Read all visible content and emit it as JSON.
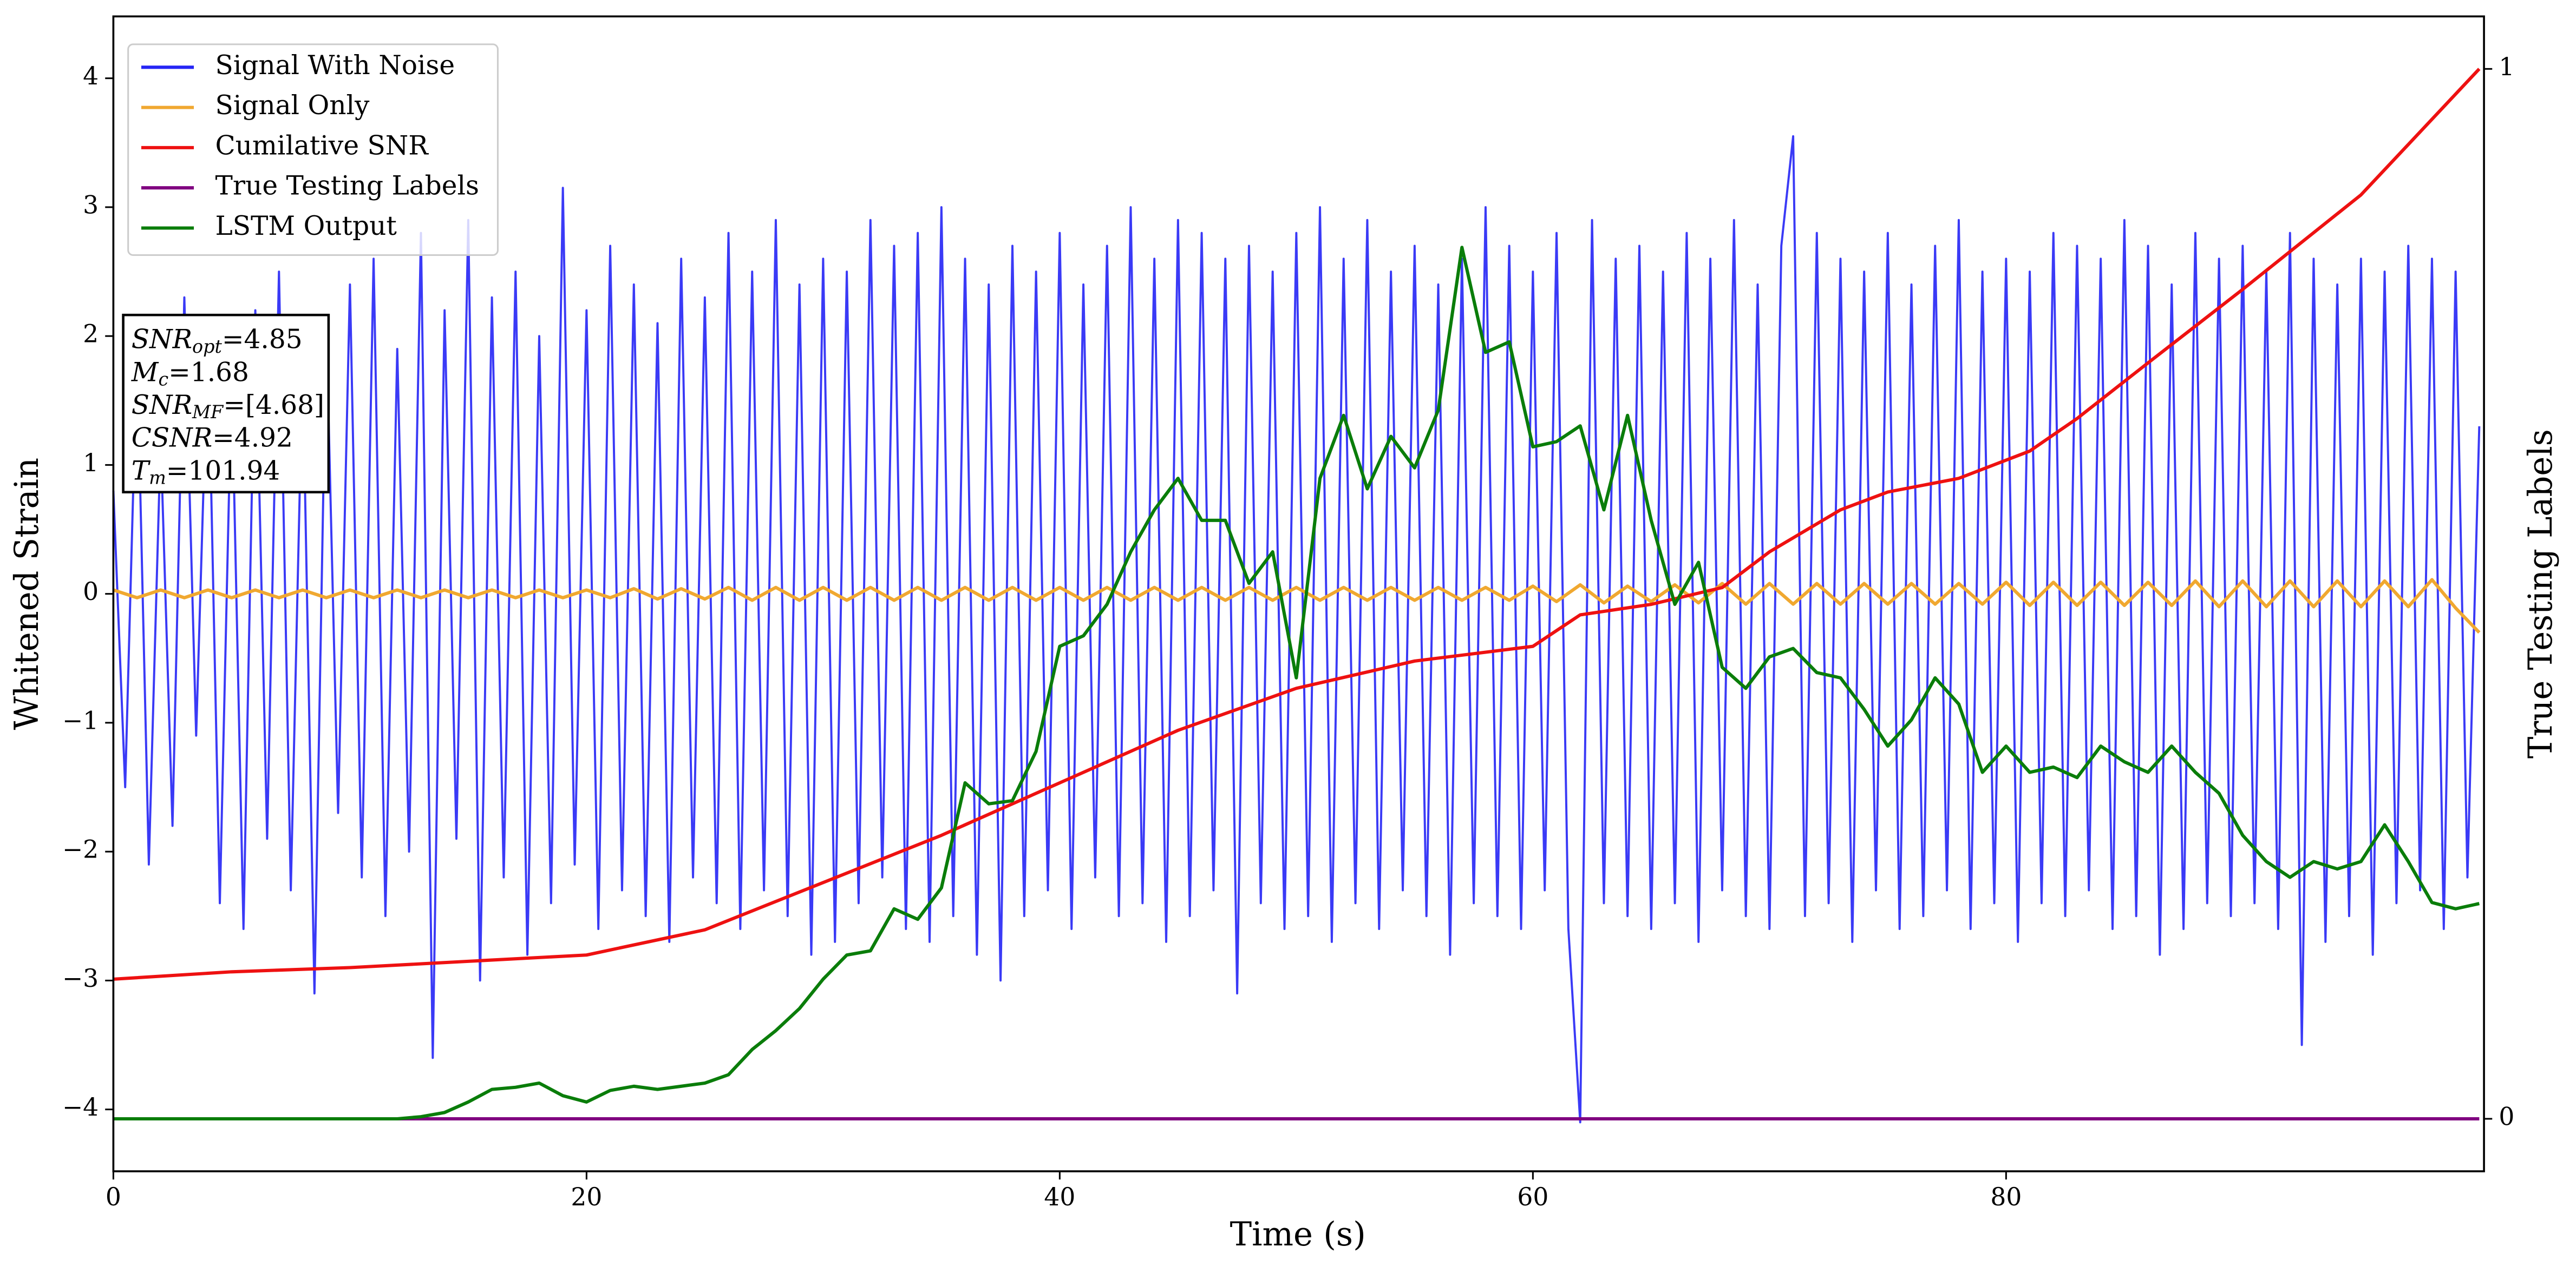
{
  "chart_data": {
    "type": "line",
    "xlabel": "Time (s)",
    "ylabel": "Whitened Strain",
    "y2label": "True Testing Labels",
    "xlim": [
      0,
      100.2
    ],
    "ylim": [
      -4.48,
      4.48
    ],
    "y2lim": [
      -0.05,
      1.05
    ],
    "xticks": [
      0,
      20,
      40,
      60,
      80
    ],
    "yticks": [
      {
        "value": -4,
        "label": "−4"
      },
      {
        "value": -3,
        "label": "−3"
      },
      {
        "value": -2,
        "label": "−2"
      },
      {
        "value": -1,
        "label": "−1"
      },
      0,
      1,
      2,
      3,
      4
    ],
    "y2ticks": [
      0,
      1
    ],
    "legend": "upper left",
    "annotation_lines": [
      {
        "name": "SNR",
        "sub": "opt",
        "text": "=4.85"
      },
      {
        "name": "M",
        "sub": "c",
        "text": "=1.68"
      },
      {
        "name": "SNR",
        "sub": "MF",
        "text": "=[4.68]"
      },
      {
        "name": "CSNR",
        "text": "=4.92"
      },
      {
        "name": "T",
        "sub": "m",
        "text": "=101.94"
      }
    ],
    "series": [
      {
        "name": "Signal With Noise",
        "color": "#2525f5",
        "x": [
          0,
          0.5,
          1,
          1.5,
          2,
          2.5,
          3,
          3.5,
          4,
          4.5,
          5,
          5.5,
          6,
          6.5,
          7,
          7.5,
          8,
          8.5,
          9,
          9.5,
          10,
          10.5,
          11,
          11.5,
          12,
          12.5,
          13,
          13.5,
          14,
          14.5,
          15,
          15.5,
          16,
          16.5,
          17,
          17.5,
          18,
          18.5,
          19,
          19.5,
          20,
          20.5,
          21,
          21.5,
          22,
          22.5,
          23,
          23.5,
          24,
          24.5,
          25,
          25.5,
          26,
          26.5,
          27,
          27.5,
          28,
          28.5,
          29,
          29.5,
          30,
          30.5,
          31,
          31.5,
          32,
          32.5,
          33,
          33.5,
          34,
          34.5,
          35,
          35.5,
          36,
          36.5,
          37,
          37.5,
          38,
          38.5,
          39,
          39.5,
          40,
          40.5,
          41,
          41.5,
          42,
          42.5,
          43,
          43.5,
          44,
          44.5,
          45,
          45.5,
          46,
          46.5,
          47,
          47.5,
          48,
          48.5,
          49,
          49.5,
          50,
          50.5,
          51,
          51.5,
          52,
          52.5,
          53,
          53.5,
          54,
          54.5,
          55,
          55.5,
          56,
          56.5,
          57,
          57.5,
          58,
          58.5,
          59,
          59.5,
          60,
          60.5,
          61,
          61.5,
          62,
          62.5,
          63,
          63.5,
          64,
          64.5,
          65,
          65.5,
          66,
          66.5,
          67,
          67.5,
          68,
          68.5,
          69,
          69.5,
          70,
          70.5,
          71,
          71.5,
          72,
          72.5,
          73,
          73.5,
          74,
          74.5,
          75,
          75.5,
          76,
          76.5,
          77,
          77.5,
          78,
          78.5,
          79,
          79.5,
          80,
          80.5,
          81,
          81.5,
          82,
          82.5,
          83,
          83.5,
          84,
          84.5,
          85,
          85.5,
          86,
          86.5,
          87,
          87.5,
          88,
          88.5,
          89,
          89.5,
          90,
          90.5,
          91,
          91.5,
          92,
          92.5,
          93,
          93.5,
          94,
          94.5,
          95,
          95.5,
          96,
          96.5,
          97,
          97.5,
          98,
          98.5,
          99,
          99.5,
          100
        ],
        "values": [
          0.8,
          -1.5,
          1.9,
          -2.1,
          1.2,
          -1.8,
          2.3,
          -1.1,
          2.0,
          -2.4,
          1.7,
          -2.6,
          2.2,
          -1.9,
          2.5,
          -2.3,
          1.8,
          -3.1,
          2.1,
          -1.7,
          2.4,
          -2.2,
          2.6,
          -2.5,
          1.9,
          -2.0,
          2.8,
          -3.6,
          2.2,
          -1.9,
          2.9,
          -3.0,
          2.3,
          -2.2,
          2.5,
          -2.8,
          2.0,
          -2.4,
          3.15,
          -2.1,
          2.2,
          -2.6,
          2.7,
          -2.3,
          2.4,
          -2.5,
          2.1,
          -2.7,
          2.6,
          -2.2,
          2.3,
          -2.4,
          2.8,
          -2.6,
          2.5,
          -2.3,
          2.9,
          -2.5,
          2.4,
          -2.8,
          2.6,
          -2.7,
          2.5,
          -2.4,
          2.9,
          -2.2,
          2.7,
          -2.6,
          2.8,
          -2.7,
          3.0,
          -2.5,
          2.6,
          -2.8,
          2.4,
          -3.0,
          2.7,
          -2.5,
          2.5,
          -2.3,
          2.8,
          -2.6,
          2.4,
          -2.2,
          2.7,
          -2.5,
          3.0,
          -2.4,
          2.6,
          -2.7,
          2.9,
          -2.5,
          2.8,
          -2.3,
          2.6,
          -3.1,
          2.7,
          -2.4,
          2.5,
          -2.6,
          2.8,
          -2.5,
          3.0,
          -2.7,
          2.6,
          -2.4,
          2.9,
          -2.6,
          2.5,
          -2.3,
          2.7,
          -2.5,
          2.4,
          -2.8,
          2.6,
          -2.4,
          3.0,
          -2.5,
          2.7,
          -2.6,
          2.5,
          -2.3,
          2.8,
          -2.6,
          -4.1,
          2.9,
          -2.4,
          2.6,
          -2.5,
          2.7,
          -2.6,
          2.5,
          -2.4,
          2.8,
          -2.7,
          2.6,
          -2.3,
          2.9,
          -2.5,
          2.4,
          -2.6,
          2.7,
          3.55,
          -2.5,
          2.8,
          -2.4,
          2.6,
          -2.7,
          2.5,
          -2.3,
          2.8,
          -2.6,
          2.4,
          -2.5,
          2.7,
          -2.3,
          2.9,
          -2.6,
          2.5,
          -2.4,
          2.6,
          -2.7,
          2.5,
          -2.4,
          2.8,
          -2.5,
          2.7,
          -2.3,
          2.6,
          -2.6,
          2.9,
          -2.5,
          2.7,
          -2.8,
          2.4,
          -2.6,
          2.8,
          -2.4,
          2.6,
          -2.5,
          2.7,
          -2.4,
          2.5,
          -2.6,
          2.8,
          -3.5,
          2.6,
          -2.7,
          2.4,
          -2.5,
          2.6,
          -2.8,
          2.5,
          -2.4,
          2.7,
          -2.3,
          2.6,
          -2.6,
          2.5,
          -2.2,
          1.3
        ]
      },
      {
        "name": "Signal Only",
        "color": "#f0a830",
        "x": [
          0,
          1,
          2,
          3,
          4,
          5,
          6,
          7,
          8,
          9,
          10,
          11,
          12,
          13,
          14,
          15,
          16,
          17,
          18,
          19,
          20,
          21,
          22,
          23,
          24,
          25,
          26,
          27,
          28,
          29,
          30,
          31,
          32,
          33,
          34,
          35,
          36,
          37,
          38,
          39,
          40,
          41,
          42,
          43,
          44,
          45,
          46,
          47,
          48,
          49,
          50,
          51,
          52,
          53,
          54,
          55,
          56,
          57,
          58,
          59,
          60,
          61,
          62,
          63,
          64,
          65,
          66,
          67,
          68,
          69,
          70,
          71,
          72,
          73,
          74,
          75,
          76,
          77,
          78,
          79,
          80,
          81,
          82,
          83,
          84,
          85,
          86,
          87,
          88,
          89,
          90,
          91,
          92,
          93,
          94,
          95,
          96,
          97,
          98,
          99,
          100
        ],
        "values": [
          0.03,
          -0.03,
          0.03,
          -0.03,
          0.03,
          -0.03,
          0.03,
          -0.03,
          0.03,
          -0.03,
          0.03,
          -0.03,
          0.03,
          -0.03,
          0.03,
          -0.03,
          0.03,
          -0.03,
          0.03,
          -0.03,
          0.03,
          -0.03,
          0.04,
          -0.04,
          0.04,
          -0.04,
          0.05,
          -0.05,
          0.05,
          -0.05,
          0.05,
          -0.05,
          0.05,
          -0.05,
          0.05,
          -0.05,
          0.05,
          -0.05,
          0.05,
          -0.05,
          0.05,
          -0.05,
          0.05,
          -0.05,
          0.05,
          -0.05,
          0.05,
          -0.05,
          0.05,
          -0.05,
          0.05,
          -0.05,
          0.05,
          -0.05,
          0.05,
          -0.05,
          0.05,
          -0.05,
          0.05,
          -0.05,
          0.06,
          -0.06,
          0.07,
          -0.07,
          0.06,
          -0.06,
          0.07,
          -0.07,
          0.08,
          -0.08,
          0.08,
          -0.08,
          0.08,
          -0.08,
          0.08,
          -0.08,
          0.08,
          -0.08,
          0.08,
          -0.08,
          0.09,
          -0.09,
          0.09,
          -0.09,
          0.09,
          -0.09,
          0.09,
          -0.09,
          0.1,
          -0.1,
          0.1,
          -0.1,
          0.1,
          -0.1,
          0.1,
          -0.1,
          0.1,
          -0.1,
          0.11,
          -0.11,
          -0.3
        ]
      },
      {
        "name": "Cumilative SNR",
        "color": "#ee1111",
        "axis": "y2",
        "x": [
          0,
          5,
          10,
          15,
          20,
          25,
          30,
          35,
          40,
          45,
          50,
          55,
          60,
          62,
          65,
          68,
          70,
          73,
          75,
          78,
          81,
          83,
          86,
          90,
          95,
          100
        ],
        "values": [
          0.133,
          0.14,
          0.144,
          0.15,
          0.156,
          0.18,
          0.225,
          0.27,
          0.32,
          0.37,
          0.41,
          0.436,
          0.45,
          0.48,
          0.49,
          0.506,
          0.54,
          0.58,
          0.597,
          0.61,
          0.636,
          0.667,
          0.72,
          0.79,
          0.88,
          1.0
        ]
      },
      {
        "name": "True Testing Labels",
        "color": "#800080",
        "axis": "y2",
        "x": [
          0,
          100
        ],
        "values": [
          0,
          0
        ]
      },
      {
        "name": "LSTM Output",
        "color": "#0a7d0a",
        "axis": "y2",
        "x": [
          0,
          1,
          2,
          3,
          4,
          5,
          6,
          7,
          8,
          9,
          10,
          11,
          12,
          13,
          14,
          15,
          16,
          17,
          18,
          19,
          20,
          21,
          22,
          23,
          24,
          25,
          26,
          27,
          28,
          29,
          30,
          31,
          32,
          33,
          34,
          35,
          36,
          37,
          38,
          39,
          40,
          41,
          42,
          43,
          44,
          45,
          46,
          47,
          48,
          49,
          50,
          51,
          52,
          53,
          54,
          55,
          56,
          57,
          58,
          59,
          60,
          61,
          62,
          63,
          64,
          65,
          66,
          67,
          68,
          69,
          70,
          71,
          72,
          73,
          74,
          75,
          76,
          77,
          78,
          79,
          80,
          81,
          82,
          83,
          84,
          85,
          86,
          87,
          88,
          89,
          90,
          91,
          92,
          93,
          94,
          95,
          96,
          97,
          98,
          99,
          100
        ],
        "values": [
          0,
          0,
          0,
          0,
          0,
          0,
          0,
          0,
          0,
          0,
          0,
          0,
          0,
          0.002,
          0.006,
          0.016,
          0.028,
          0.03,
          0.034,
          0.022,
          0.016,
          0.027,
          0.031,
          0.028,
          0.031,
          0.034,
          0.042,
          0.066,
          0.084,
          0.105,
          0.133,
          0.156,
          0.16,
          0.2,
          0.19,
          0.22,
          0.32,
          0.3,
          0.303,
          0.35,
          0.45,
          0.46,
          0.49,
          0.54,
          0.58,
          0.61,
          0.57,
          0.57,
          0.51,
          0.54,
          0.42,
          0.61,
          0.67,
          0.6,
          0.65,
          0.62,
          0.675,
          0.83,
          0.73,
          0.74,
          0.64,
          0.645,
          0.66,
          0.58,
          0.67,
          0.57,
          0.49,
          0.53,
          0.43,
          0.41,
          0.44,
          0.448,
          0.425,
          0.42,
          0.39,
          0.355,
          0.38,
          0.42,
          0.395,
          0.33,
          0.355,
          0.33,
          0.335,
          0.325,
          0.355,
          0.34,
          0.33,
          0.355,
          0.33,
          0.31,
          0.27,
          0.245,
          0.23,
          0.245,
          0.238,
          0.245,
          0.28,
          0.245,
          0.206,
          0.2,
          0.205
        ]
      }
    ]
  }
}
